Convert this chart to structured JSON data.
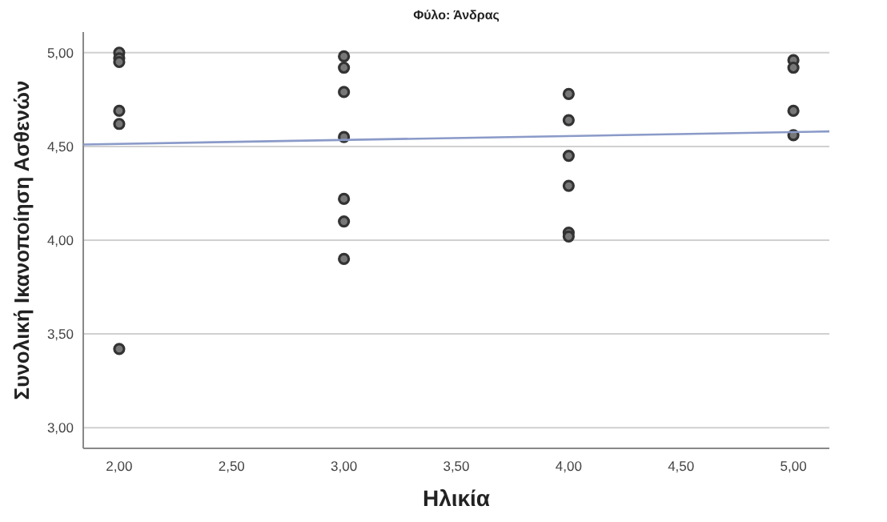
{
  "chart_data": {
    "type": "scatter",
    "title": "Φύλο: Άνδρας",
    "xlabel": "Ηλικία",
    "ylabel": "Συνολική Ικανοποίηση Ασθενών",
    "xlim": [
      1.84,
      5.16
    ],
    "xticks": [
      {
        "value": 2,
        "label": "2,00"
      },
      {
        "value": 2.5,
        "label": "2,50"
      },
      {
        "value": 3,
        "label": "3,00"
      },
      {
        "value": 3.5,
        "label": "3,50"
      },
      {
        "value": 4,
        "label": "4,00"
      },
      {
        "value": 4.5,
        "label": "4,50"
      },
      {
        "value": 5,
        "label": "5,00"
      }
    ],
    "ylim": [
      2.89,
      5.11
    ],
    "yticks": [
      {
        "value": 3,
        "label": "3,00"
      },
      {
        "value": 3.5,
        "label": "3,50"
      },
      {
        "value": 4,
        "label": "4,00"
      },
      {
        "value": 4.5,
        "label": "4,50"
      },
      {
        "value": 5,
        "label": "5,00"
      }
    ],
    "grid": "y",
    "marker": "circle",
    "series": [
      {
        "color": "#333333",
        "x": [
          2,
          2,
          2,
          2,
          2,
          2,
          3,
          3,
          3,
          3,
          3,
          3,
          3,
          4,
          4,
          4,
          4,
          4,
          4,
          5,
          5,
          5,
          5
        ],
        "values": [
          5.0,
          4.97,
          4.95,
          4.69,
          4.62,
          3.42,
          4.98,
          4.92,
          4.79,
          4.55,
          4.22,
          4.1,
          3.9,
          4.78,
          4.64,
          4.45,
          4.29,
          4.04,
          4.02,
          4.96,
          4.92,
          4.69,
          4.56
        ]
      },
      {
        "type": "line",
        "color": "#8a9ac8",
        "marker": "none",
        "x": [
          1.84,
          5.16
        ],
        "values": [
          4.51,
          4.58
        ]
      }
    ]
  }
}
